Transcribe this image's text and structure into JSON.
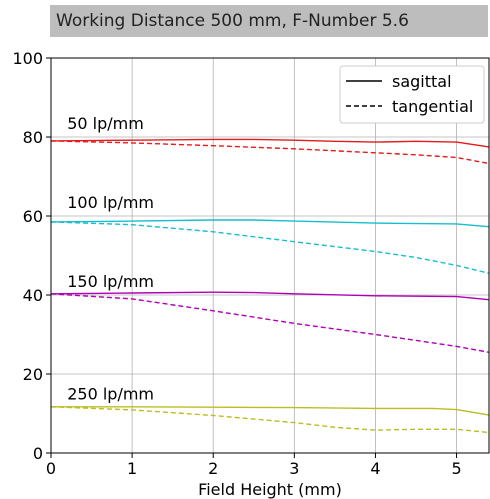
{
  "chart_data": {
    "type": "line",
    "title": "Working Distance 500 mm, F-Number 5.6",
    "xlabel": "Field Height (mm)",
    "ylabel": "",
    "xlim": [
      0,
      5.4
    ],
    "ylim": [
      0,
      100
    ],
    "xticks": [
      0,
      1,
      2,
      3,
      4,
      5
    ],
    "yticks": [
      0,
      20,
      40,
      60,
      80,
      100
    ],
    "grid": true,
    "legend": {
      "position": "top-right",
      "entries": [
        {
          "label": "sagittal",
          "style": "solid"
        },
        {
          "label": "tangential",
          "style": "dashed"
        }
      ]
    },
    "groups": [
      {
        "label": "50 lp/mm",
        "label_at": [
          0.2,
          82
        ],
        "color": "#e41a1c",
        "sagittal": {
          "x": [
            0,
            1,
            2,
            2.5,
            3,
            3.5,
            4,
            4.5,
            5,
            5.4
          ],
          "y": [
            79,
            79.2,
            79.4,
            79.4,
            79.2,
            78.9,
            78.7,
            78.9,
            78.7,
            77.5
          ]
        },
        "tangential": {
          "x": [
            0,
            1,
            2,
            3,
            4,
            4.5,
            5,
            5.4
          ],
          "y": [
            79,
            78.5,
            77.8,
            77,
            76,
            75.5,
            74.8,
            73.3
          ]
        }
      },
      {
        "label": "100 lp/mm",
        "label_at": [
          0.2,
          62
        ],
        "color": "#17becf",
        "sagittal": {
          "x": [
            0,
            1,
            2,
            2.5,
            3,
            4,
            5,
            5.4
          ],
          "y": [
            58.5,
            58.7,
            59,
            59,
            58.7,
            58.2,
            58,
            57.3
          ]
        },
        "tangential": {
          "x": [
            0,
            1,
            2,
            3,
            4,
            4.5,
            5,
            5.4
          ],
          "y": [
            58.5,
            57.8,
            56,
            53.5,
            51,
            49.5,
            47.5,
            45.5
          ]
        }
      },
      {
        "label": "150 lp/mm",
        "label_at": [
          0.2,
          42
        ],
        "color": "#b000b5",
        "sagittal": {
          "x": [
            0,
            1,
            2,
            2.5,
            3,
            4,
            5,
            5.4
          ],
          "y": [
            40.3,
            40.5,
            40.7,
            40.6,
            40.3,
            39.8,
            39.6,
            38.8
          ]
        },
        "tangential": {
          "x": [
            0,
            1,
            2,
            3,
            4,
            4.5,
            5,
            5.4
          ],
          "y": [
            40.3,
            39,
            36,
            32.8,
            30,
            28.5,
            27,
            25.5
          ]
        }
      },
      {
        "label": "250 lp/mm",
        "label_at": [
          0.2,
          13.5
        ],
        "color": "#bcbd22",
        "sagittal": {
          "x": [
            0,
            1,
            2,
            3,
            4,
            4.7,
            5,
            5.4
          ],
          "y": [
            11.7,
            11.7,
            11.6,
            11.5,
            11.3,
            11.3,
            11,
            9.6
          ]
        },
        "tangential": {
          "x": [
            0,
            1,
            2,
            3,
            3.5,
            4,
            4.5,
            5,
            5.4
          ],
          "y": [
            11.7,
            10.9,
            9.5,
            7.7,
            6.5,
            5.8,
            6,
            6,
            5.2
          ]
        }
      }
    ]
  }
}
